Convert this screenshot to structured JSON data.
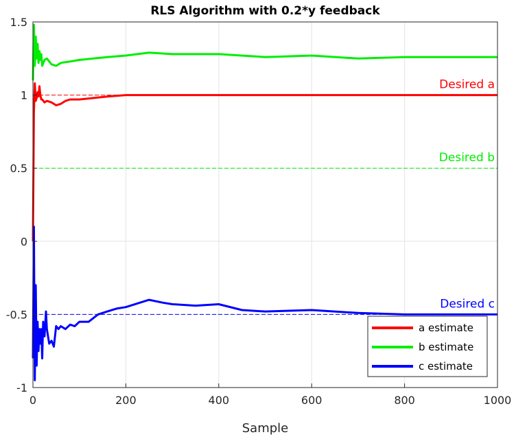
{
  "chart_data": {
    "type": "line",
    "title": "RLS Algorithm with 0.2*y feedback",
    "xlabel": "Sample",
    "ylabel": "",
    "xlim": [
      0,
      1000
    ],
    "ylim": [
      -1,
      1.5
    ],
    "xticks": [
      0,
      200,
      400,
      600,
      800,
      1000
    ],
    "xtick_labels": [
      "0",
      "200",
      "400",
      "600",
      "800",
      "1000"
    ],
    "yticks": [
      -1,
      -0.5,
      0,
      0.5,
      1,
      1.5
    ],
    "ytick_labels": [
      "-1",
      "-0.5",
      "0",
      "0.5",
      "1",
      "1.5"
    ],
    "grid": true,
    "legend_position": "bottom-right",
    "series": [
      {
        "name": "a estimate",
        "color": "#ff0000",
        "x": [
          0,
          2,
          4,
          6,
          8,
          10,
          12,
          14,
          16,
          18,
          20,
          25,
          30,
          40,
          50,
          60,
          70,
          80,
          100,
          130,
          160,
          200,
          250,
          300,
          400,
          500,
          600,
          700,
          800,
          900,
          1000
        ],
        "y": [
          0,
          0.88,
          1.08,
          0.96,
          0.98,
          1.02,
          0.99,
          1.06,
          1.0,
          0.97,
          0.97,
          0.95,
          0.96,
          0.95,
          0.93,
          0.94,
          0.96,
          0.97,
          0.97,
          0.98,
          0.99,
          1.0,
          1.0,
          1.0,
          1.0,
          1.0,
          1.0,
          1.0,
          1.0,
          1.0,
          1.0
        ]
      },
      {
        "name": "b estimate",
        "color": "#00ee00",
        "x": [
          0,
          2,
          4,
          6,
          8,
          10,
          12,
          14,
          16,
          18,
          20,
          25,
          30,
          40,
          50,
          60,
          80,
          100,
          130,
          160,
          200,
          250,
          300,
          400,
          500,
          600,
          700,
          800,
          900,
          1000
        ],
        "y": [
          1.1,
          1.48,
          1.2,
          1.4,
          1.25,
          1.35,
          1.22,
          1.3,
          1.24,
          1.28,
          1.2,
          1.24,
          1.25,
          1.21,
          1.2,
          1.22,
          1.23,
          1.24,
          1.25,
          1.26,
          1.27,
          1.29,
          1.28,
          1.28,
          1.26,
          1.27,
          1.25,
          1.26,
          1.26,
          1.26
        ]
      },
      {
        "name": "c estimate",
        "color": "#0000ff",
        "x": [
          0,
          2,
          4,
          6,
          8,
          10,
          12,
          14,
          16,
          18,
          20,
          22,
          25,
          28,
          30,
          35,
          40,
          45,
          50,
          55,
          60,
          70,
          80,
          90,
          100,
          120,
          140,
          160,
          180,
          200,
          230,
          250,
          280,
          300,
          350,
          400,
          450,
          500,
          600,
          700,
          800,
          900,
          1000
        ],
        "y": [
          -0.8,
          0.1,
          -0.95,
          -0.3,
          -0.85,
          -0.55,
          -0.75,
          -0.6,
          -0.7,
          -0.6,
          -0.8,
          -0.55,
          -0.65,
          -0.48,
          -0.6,
          -0.7,
          -0.68,
          -0.72,
          -0.58,
          -0.6,
          -0.58,
          -0.6,
          -0.57,
          -0.58,
          -0.55,
          -0.55,
          -0.5,
          -0.48,
          -0.46,
          -0.45,
          -0.42,
          -0.4,
          -0.42,
          -0.43,
          -0.44,
          -0.43,
          -0.47,
          -0.48,
          -0.47,
          -0.49,
          -0.5,
          -0.5,
          -0.5
        ]
      }
    ],
    "reference_lines": [
      {
        "label": "Desired a",
        "value": 1,
        "color": "#ff0000"
      },
      {
        "label": "Desired b",
        "value": 0.5,
        "color": "#00ee00"
      },
      {
        "label": "Desired c",
        "value": -0.5,
        "color": "#0000ff"
      }
    ]
  }
}
